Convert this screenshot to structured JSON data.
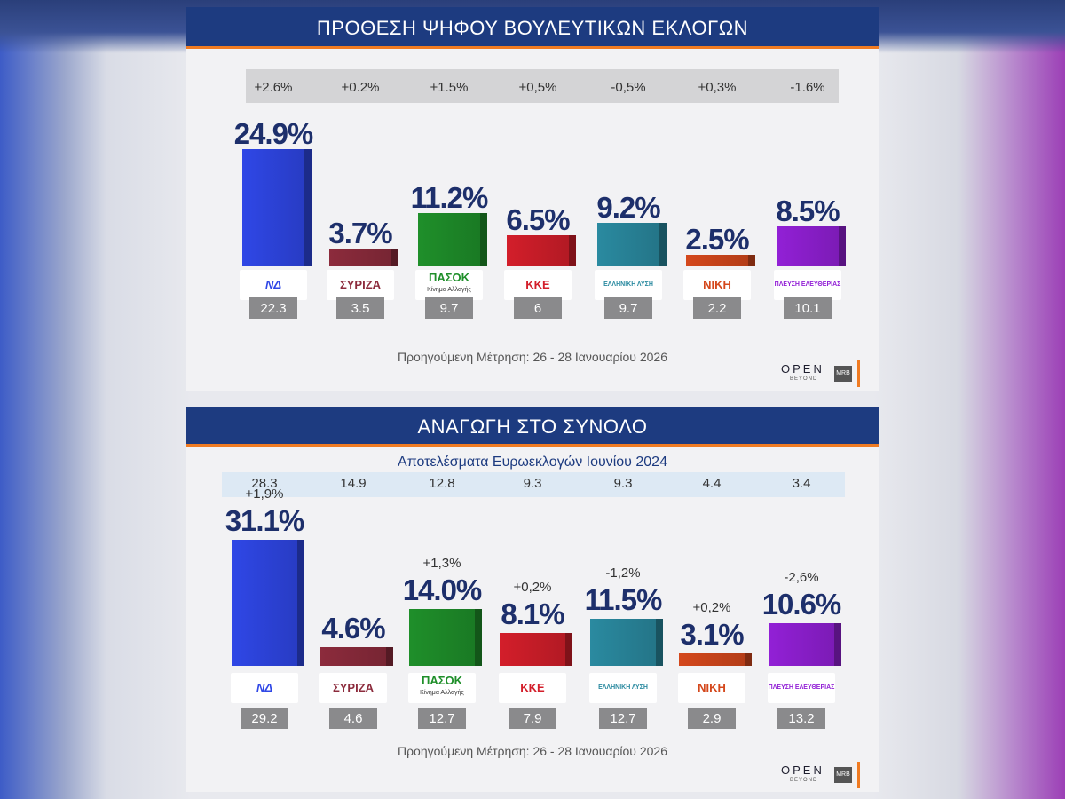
{
  "colors": {
    "title_bar": "#1d3b80",
    "accent": "#f07b22",
    "party_colors": [
      "#2f47e6",
      "#8c2b3c",
      "#1f8f2a",
      "#d31e2a",
      "#2a8aa0",
      "#d4481c",
      "#9220d6"
    ]
  },
  "party_logos": [
    {
      "icon": "nd-logo",
      "text": "ΝΔ"
    },
    {
      "icon": "syriza-logo",
      "text": "ΣΥΡΙΖΑ"
    },
    {
      "icon": "pasok-logo",
      "text": "ΠΑΣΟΚ",
      "subtext": "Κίνημα Αλλαγής"
    },
    {
      "icon": "kke-logo",
      "text": "ΚΚΕ"
    },
    {
      "icon": "elliniki-lysi-logo",
      "text": "ΕΛΛΗΝΙΚΗ ΛΥΣΗ"
    },
    {
      "icon": "niki-logo",
      "text": "ΝΙΚΗ"
    },
    {
      "icon": "plefsi-logo",
      "text": "ΠΛΕΥΣΗ ΕΛΕΥΘΕΡΙΑΣ"
    }
  ],
  "chart_data": [
    {
      "type": "bar",
      "title": "ΠΡΟΘΕΣΗ ΨΗΦΟΥ ΒΟΥΛΕΥΤΙΚΩΝ ΕΚΛΟΓΩΝ",
      "categories": [
        "ΝΔ",
        "ΣΥΡΙΖΑ",
        "ΠΑΣΟΚ",
        "ΚΚΕ",
        "ΕΛΛΗΝΙΚΗ ΛΥΣΗ",
        "ΝΙΚΗ",
        "ΠΛΕΥΣΗ ΕΛΕΥΘΕΡΙΑΣ"
      ],
      "values": [
        24.9,
        3.7,
        11.2,
        6.5,
        9.2,
        2.5,
        8.5
      ],
      "value_labels": [
        "24.9%",
        "3.7%",
        "11.2%",
        "6.5%",
        "9.2%",
        "2.5%",
        "8.5%"
      ],
      "changes": [
        "+2.6%",
        "+0.2%",
        "+1.5%",
        "+0,5%",
        "-0,5%",
        "+0,3%",
        "-1.6%"
      ],
      "previous": [
        "22.3",
        "3.5",
        "9.7",
        "6",
        "9.7",
        "2.2",
        "10.1"
      ],
      "footnote": "Προηγούμενη Μέτρηση: 26 - 28 Ιανουαρίου 2026",
      "ylim": [
        0,
        25
      ]
    },
    {
      "type": "bar",
      "title": "ΑΝΑΓΩΓΗ ΣΤΟ ΣΥΝΟΛΟ",
      "subtitle": "Αποτελέσματα Ευρωεκλογών Ιουνίου 2024",
      "categories": [
        "ΝΔ",
        "ΣΥΡΙΖΑ",
        "ΠΑΣΟΚ",
        "ΚΚΕ",
        "ΕΛΛΗΝΙΚΗ ΛΥΣΗ",
        "ΝΙΚΗ",
        "ΠΛΕΥΣΗ ΕΛΕΥΘΕΡΙΑΣ"
      ],
      "values": [
        31.1,
        4.6,
        14.0,
        8.1,
        11.5,
        3.1,
        10.6
      ],
      "value_labels": [
        "31.1%",
        "4.6%",
        "14.0%",
        "8.1%",
        "11.5%",
        "3.1%",
        "10.6%"
      ],
      "changes": [
        "+1,9%",
        "",
        "+1,3%",
        "+0,2%",
        "-1,2%",
        "+0,2%",
        "-2,6%"
      ],
      "euro_2024": [
        "28.3",
        "14.9",
        "12.8",
        "9.3",
        "9.3",
        "4.4",
        "3.4"
      ],
      "previous": [
        "29.2",
        "4.6",
        "12.7",
        "7.9",
        "12.7",
        "2.9",
        "13.2"
      ],
      "footnote": "Προηγούμενη Μέτρηση: 26 - 28 Ιανουαρίου 2026",
      "ylim": [
        0,
        31.1
      ]
    }
  ],
  "branding": {
    "open": "OPEN",
    "beyond": "BEYOND",
    "mrb": "MRB"
  }
}
